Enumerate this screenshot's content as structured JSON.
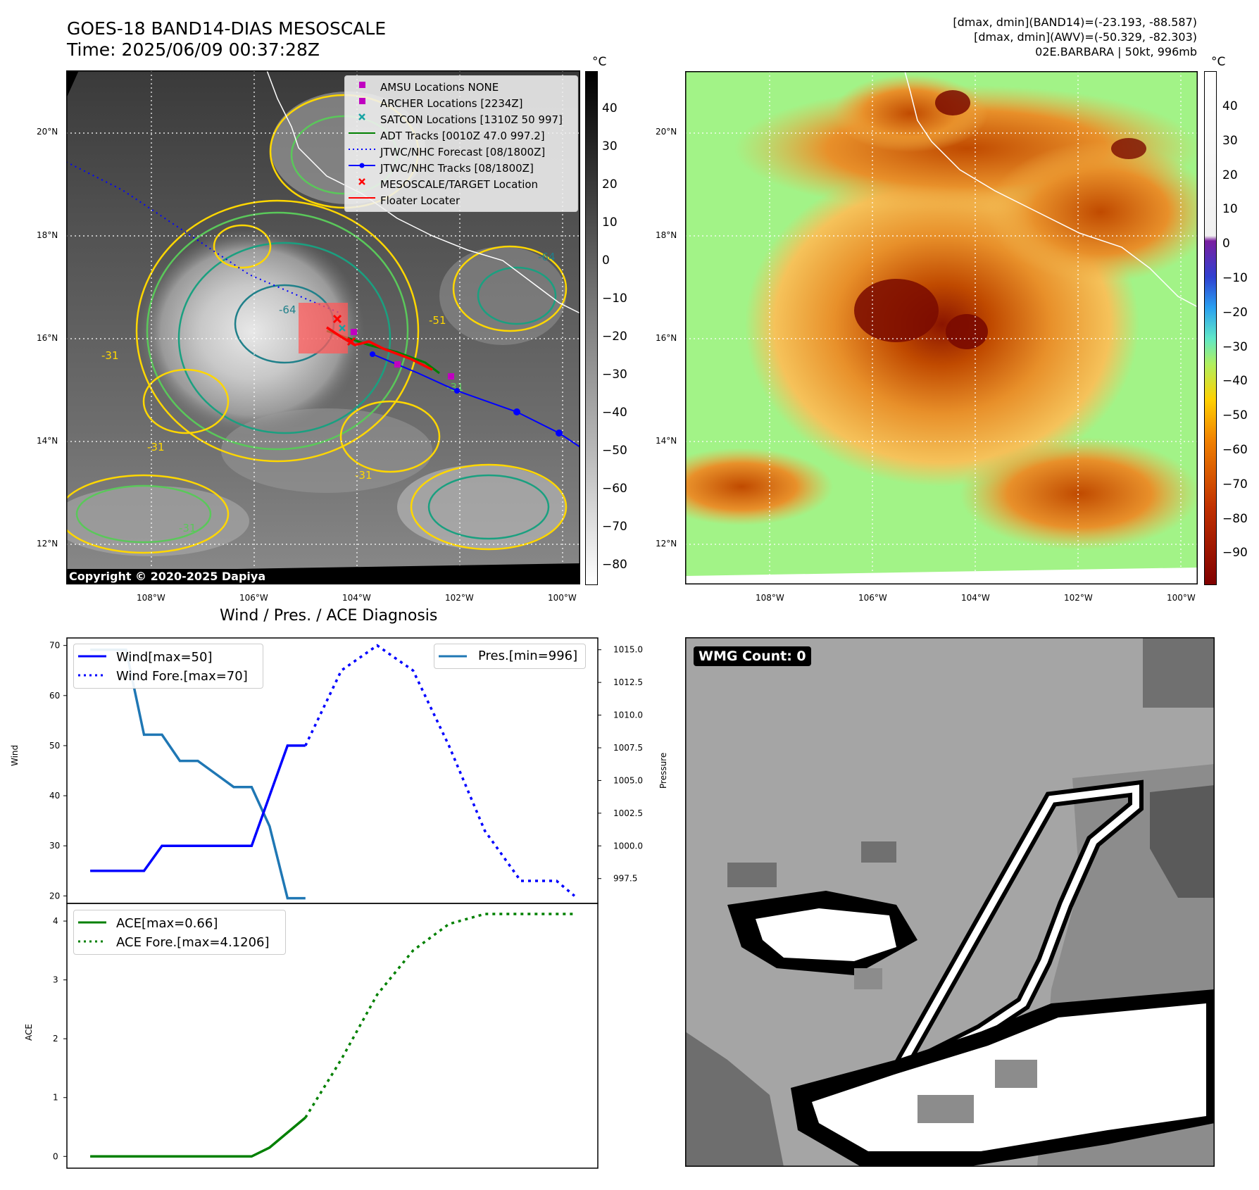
{
  "header": {
    "title_line1": "GOES-18 BAND14-DIAS MESOSCALE",
    "title_line2": "Time: 2025/06/09 00:37:28Z",
    "info_line1": "[dmax, dmin](BAND14)=(-23.193, -88.587)",
    "info_line2": "[dmax, dmin](AWV)=(-50.329, -82.303)",
    "info_line3": "02E.BARBARA | 50kt, 996mb"
  },
  "map_axes": {
    "lat_labels": [
      "20°N",
      "18°N",
      "16°N",
      "14°N",
      "12°N"
    ],
    "lon_labels": [
      "108°W",
      "106°W",
      "104°W",
      "102°W",
      "100°W"
    ]
  },
  "ir_map": {
    "copyright": "Copyright © 2020-2025 Dapiya",
    "contour_labels": [
      "-64",
      "-64",
      "-31",
      "-31",
      "-31",
      "-31",
      "-31",
      "-51"
    ],
    "legend": [
      {
        "label": "AMSU Locations NONE",
        "color": "#c000c0",
        "marker": "square"
      },
      {
        "label": "ARCHER Locations [2234Z]",
        "color": "#c000c0",
        "marker": "square"
      },
      {
        "label": "SATCON Locations [1310Z 50 997]",
        "color": "#17a3a3",
        "marker": "x"
      },
      {
        "label": "ADT Tracks [0010Z 47.0 997.2]",
        "color": "#008000",
        "marker": "line"
      },
      {
        "label": "JTWC/NHC Forecast [08/1800Z]",
        "color": "#0000ff",
        "marker": "dotted"
      },
      {
        "label": "JTWC/NHC Tracks [08/1800Z]",
        "color": "#0000ff",
        "marker": "line-dot"
      },
      {
        "label": "MESOSCALE/TARGET Location",
        "color": "#ff0000",
        "marker": "x"
      },
      {
        "label": "Floater Locater",
        "color": "#ff0000",
        "marker": "line"
      }
    ],
    "colorbar_unit": "°C",
    "colorbar_ticks": [
      "40",
      "30",
      "20",
      "10",
      "0",
      "−10",
      "−20",
      "−30",
      "−40",
      "−50",
      "−60",
      "−70",
      "−80"
    ]
  },
  "awv_map": {
    "colorbar_unit": "°C",
    "colorbar_ticks": [
      "40",
      "30",
      "20",
      "10",
      "0",
      "−10",
      "−20",
      "−30",
      "−40",
      "−50",
      "−60",
      "−70",
      "−80",
      "−90"
    ]
  },
  "wmg": {
    "label": "WMG Count: 0"
  },
  "chart_data": [
    {
      "type": "line",
      "title": "Wind / Pres. / ACE Diagnosis",
      "ylabel": "Wind",
      "ylabel_right": "Pressure",
      "x": [
        0,
        1,
        2,
        3,
        4,
        5,
        6,
        7,
        8,
        9,
        10,
        11,
        12,
        13,
        14,
        15,
        16,
        17,
        18,
        19,
        20,
        21,
        22,
        23,
        24,
        25,
        26,
        27
      ],
      "series": [
        {
          "name": "Wind[max=50]",
          "style": "solid",
          "color": "#0000ff",
          "axis": "left",
          "x": [
            0,
            3,
            4,
            9,
            11,
            12
          ],
          "values": [
            25,
            25,
            30,
            30,
            50,
            50
          ]
        },
        {
          "name": "Wind Fore.[max=70]",
          "style": "dotted",
          "color": "#0000ff",
          "axis": "left",
          "x": [
            12,
            14,
            16,
            18,
            20,
            22,
            24,
            25,
            26,
            27
          ],
          "values": [
            50,
            65,
            70,
            65,
            50,
            33,
            23,
            23,
            23,
            20
          ]
        },
        {
          "name": "Pres.[min=996]",
          "style": "solid",
          "color": "#1f77b4",
          "axis": "right",
          "x": [
            0,
            2,
            3,
            4,
            5,
            6,
            7,
            8,
            9,
            10,
            11,
            12
          ],
          "values": [
            1015,
            1015,
            1008.5,
            1008.5,
            1006.5,
            1006.5,
            1005.5,
            1004.5,
            1004.5,
            1001.5,
            996,
            996
          ]
        }
      ],
      "ylim": [
        18.5,
        71.5
      ],
      "ylim_right": [
        995.6,
        1015.9
      ],
      "yticks": [
        "20",
        "30",
        "40",
        "50",
        "60",
        "70"
      ],
      "yticks_right": [
        "997.5",
        "1000.0",
        "1002.5",
        "1005.0",
        "1007.5",
        "1010.0",
        "1012.5",
        "1015.0"
      ]
    },
    {
      "type": "line",
      "ylabel": "ACE",
      "series": [
        {
          "name": "ACE[max=0.66]",
          "style": "solid",
          "color": "#008000",
          "x": [
            0,
            9,
            10,
            12
          ],
          "values": [
            0,
            0,
            0.15,
            0.66
          ]
        },
        {
          "name": "ACE Fore.[max=4.1206]",
          "style": "dotted",
          "color": "#008000",
          "x": [
            12,
            14,
            16,
            18,
            20,
            22,
            23,
            24,
            27
          ],
          "values": [
            0.66,
            1.65,
            2.75,
            3.5,
            3.95,
            4.1206,
            4.1206,
            4.1206,
            4.1206
          ]
        }
      ],
      "ylim": [
        -0.2,
        4.3
      ],
      "yticks": [
        "0",
        "1",
        "2",
        "3",
        "4"
      ]
    }
  ]
}
